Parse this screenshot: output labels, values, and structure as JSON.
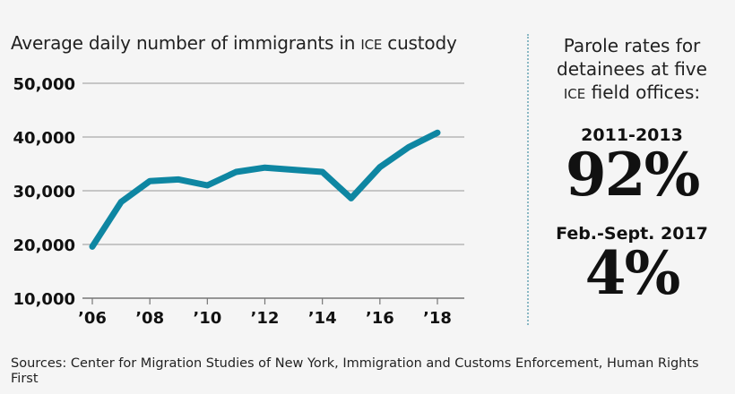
{
  "chart_data": {
    "type": "line",
    "title": "Average daily number of immigrants in ICE custody",
    "x": [
      2006,
      2007,
      2008,
      2009,
      2010,
      2011,
      2012,
      2013,
      2014,
      2015,
      2016,
      2017,
      2018
    ],
    "values": [
      19600,
      27900,
      31800,
      32100,
      31000,
      33500,
      34300,
      33900,
      33500,
      28600,
      34400,
      38100,
      40800
    ],
    "xlim": [
      2006,
      2018
    ],
    "ylim": [
      10000,
      50000
    ],
    "yticks": [
      10000,
      20000,
      30000,
      40000,
      50000
    ],
    "ytick_labels": [
      "10,000",
      "20,000",
      "30,000",
      "40,000",
      "50,000"
    ],
    "xticks": [
      2006,
      2008,
      2010,
      2012,
      2014,
      2016,
      2018
    ],
    "xtick_labels": [
      "’06",
      "’08",
      "’10",
      "’12",
      "’14",
      "’16",
      "’18"
    ],
    "grid": true,
    "line_color": "#0e86a2"
  },
  "title_parts": {
    "pre": "Average daily number of immigrants in ",
    "ice": "ICE",
    "post": " custody"
  },
  "side": {
    "title_l1": "Parole rates for",
    "title_l2": "detainees at five",
    "title_ice": "ICE",
    "title_l3": " field offices:",
    "stats": [
      {
        "period": "2011-2013",
        "value": "92%"
      },
      {
        "period": "Feb.-Sept. 2017",
        "value": "4%"
      }
    ]
  },
  "source": "Sources: Center for Migration Studies of New York, Immigration and Customs Enforcement, Human Rights First"
}
